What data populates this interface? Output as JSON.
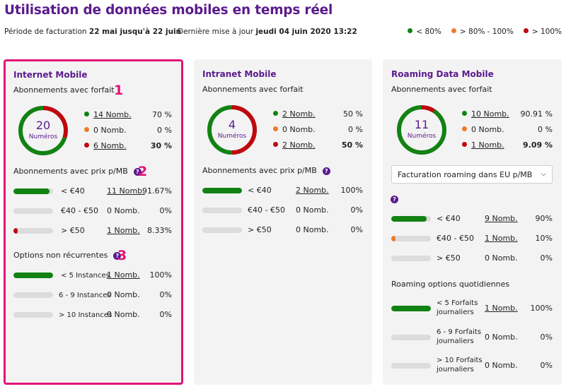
{
  "header": {
    "title": "Utilisation de données mobiles en temps réel",
    "period_label": "Période de facturation",
    "period_value": "22 mai jusqu'à 22 juin",
    "update_label": "Dernière mise à jour",
    "update_value": "jeudi 04 juin 2020 13:22",
    "legend": [
      {
        "label": "< 80%",
        "color": "#128212"
      },
      {
        "label": "> 80% - 100%",
        "color": "#ee7a2b"
      },
      {
        "label": "> 100%",
        "color": "#c0080f"
      }
    ]
  },
  "colors": {
    "green": "#128212",
    "orange": "#ee7a2b",
    "red": "#c0080f",
    "purple": "#5a1a8c",
    "pink": "#e1147a"
  },
  "annotations": {
    "n1": "1",
    "n2": "2",
    "n3": "3"
  },
  "panels": [
    {
      "title": "Internet Mobile",
      "subs_label": "Abonnements avec forfait",
      "donut": {
        "count": "20",
        "label": "Numéros",
        "green_fraction": 0.7,
        "red_fraction": 0.3
      },
      "rows": [
        {
          "label": "14 Nomb.",
          "pct": "70 %",
          "color": "green"
        },
        {
          "label": "0 Nomb.",
          "pct": "0 %",
          "color": "orange"
        },
        {
          "label": "6 Nomb.",
          "pct": "30 %",
          "color": "red"
        }
      ],
      "price_label": "Abonnements avec prix p/MB",
      "price_rows": [
        {
          "label": "< €40",
          "count": "11 Nomb.",
          "pct": "91.67%",
          "level": 0.9167,
          "color": "green"
        },
        {
          "label": "€40 - €50",
          "count": "0 Nomb.",
          "pct": "0%",
          "level": 0,
          "color": "green"
        },
        {
          "label": "> €50",
          "count": "1 Nomb.",
          "pct": "8.33%",
          "level": 0.0833,
          "color": "red"
        }
      ],
      "options_label": "Options non récurrentes",
      "option_rows": [
        {
          "label": "< 5 Instances",
          "count": "1 Nomb.",
          "pct": "100%",
          "level": 1.0
        },
        {
          "label": "6 - 9 Instances",
          "count": "0 Nomb.",
          "pct": "0%",
          "level": 0
        },
        {
          "label": "> 10 Instances",
          "count": "0 Nomb.",
          "pct": "0%",
          "level": 0
        }
      ]
    },
    {
      "title": "Intranet Mobile",
      "subs_label": "Abonnements avec forfait",
      "donut": {
        "count": "4",
        "label": "Numéros",
        "green_fraction": 0.5,
        "red_fraction": 0.5
      },
      "rows": [
        {
          "label": "2 Nomb.",
          "pct": "50 %",
          "color": "green"
        },
        {
          "label": "0 Nomb.",
          "pct": "0 %",
          "color": "orange"
        },
        {
          "label": "2 Nomb.",
          "pct": "50 %",
          "color": "red"
        }
      ],
      "price_label": "Abonnements avec prix p/MB",
      "price_rows": [
        {
          "label": "< €40",
          "count": "2 Nomb.",
          "pct": "100%",
          "level": 1.0,
          "color": "green"
        },
        {
          "label": "€40 - €50",
          "count": "0 Nomb.",
          "pct": "0%",
          "level": 0,
          "color": "green"
        },
        {
          "label": "> €50",
          "count": "0 Nomb.",
          "pct": "0%",
          "level": 0,
          "color": "green"
        }
      ]
    },
    {
      "title": "Roaming Data Mobile",
      "subs_label": "Abonnements avec forfait",
      "donut": {
        "count": "11",
        "label": "Numéros",
        "green_fraction": 0.9091,
        "red_fraction": 0.0909
      },
      "rows": [
        {
          "label": "10 Nomb.",
          "pct": "90.91 %",
          "color": "green"
        },
        {
          "label": "0 Nomb.",
          "pct": "0 %",
          "color": "orange"
        },
        {
          "label": "1 Nomb.",
          "pct": "9.09 %",
          "color": "red"
        }
      ],
      "select_value": "Facturation roaming dans EU p/MB",
      "price_rows": [
        {
          "label": "< €40",
          "count": "9 Nomb.",
          "pct": "90%",
          "level": 0.9,
          "color": "green"
        },
        {
          "label": "€40 - €50",
          "count": "1 Nomb.",
          "pct": "10%",
          "level": 0.1,
          "color": "orange"
        },
        {
          "label": "> €50",
          "count": "0 Nomb.",
          "pct": "0%",
          "level": 0,
          "color": "green"
        }
      ],
      "daily_label": "Roaming options quotidiennes",
      "daily_rows": [
        {
          "label_line1": "< 5 Forfaits",
          "label_line2": "journaliers",
          "count": "1 Nomb.",
          "pct": "100%",
          "level": 1.0
        },
        {
          "label_line1": "6 - 9 Forfaits",
          "label_line2": "journaliers",
          "count": "0 Nomb.",
          "pct": "0%",
          "level": 0
        },
        {
          "label_line1": "> 10 Forfaits",
          "label_line2": "journaliers",
          "count": "0 Nomb.",
          "pct": "0%",
          "level": 0
        }
      ]
    }
  ]
}
